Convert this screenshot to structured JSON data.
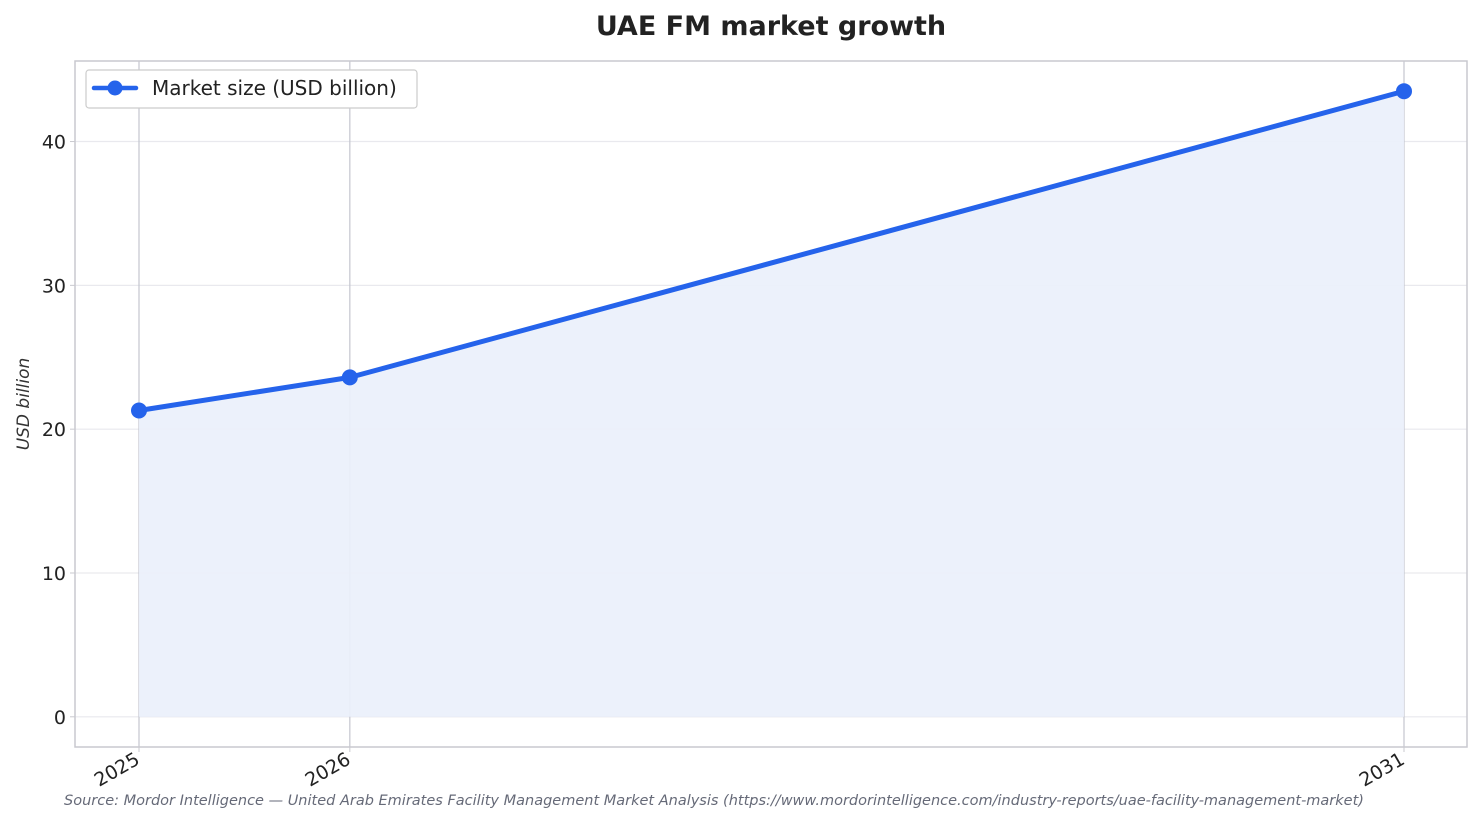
{
  "colors": {
    "line": "#2563eb",
    "fill": "#eaf0fb",
    "grid": "#e9e9ee",
    "vertical_grid": "#c4c6cf",
    "frame": "#c9c9cf",
    "text": "#222222",
    "source": "#666a78"
  },
  "chart_data": {
    "type": "area",
    "title": "UAE FM market growth",
    "xlabel": "",
    "ylabel": "USD billion",
    "x": [
      "2025",
      "2026",
      "2031"
    ],
    "x_numeric": [
      2025,
      2026,
      2031
    ],
    "series": [
      {
        "name": "Market size (USD billion)",
        "values": [
          21.3,
          23.6,
          43.5
        ],
        "marker": "circle",
        "filled": true
      }
    ],
    "yticks": [
      "0",
      "10",
      "20",
      "30",
      "40"
    ],
    "ytick_values": [
      0,
      10,
      20,
      30,
      40
    ],
    "ylim": [
      -2.1,
      45.6
    ],
    "grid": true,
    "legend_position": "top-left",
    "source": "Source: Mordor Intelligence — United Arab Emirates Facility Management Market Analysis (https://www.mordorintelligence.com/industry-reports/uae-facility-management-market)"
  }
}
